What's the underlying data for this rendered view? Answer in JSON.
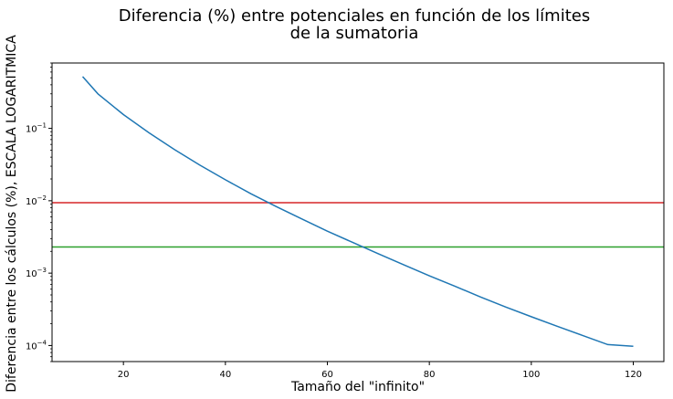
{
  "chart_data": {
    "type": "line",
    "title_lines": [
      "Diferencia (%) entre potenciales en función de los límites",
      "de la sumatoria"
    ],
    "xlabel": "Tamaño del \"infinito\"",
    "ylabel": "Diferencia entre los cálculos (%), ESCALA LOGARITMICA",
    "xlim": [
      6,
      126
    ],
    "ylim": [
      6e-05,
      0.8
    ],
    "yscale": "log",
    "grid": false,
    "x_ticks": [
      20,
      40,
      60,
      80,
      100,
      120
    ],
    "y_ticks": [
      {
        "value": 0.0001,
        "base": "10",
        "exp": "−4"
      },
      {
        "value": 0.001,
        "base": "10",
        "exp": "−3"
      },
      {
        "value": 0.01,
        "base": "10",
        "exp": "−2"
      },
      {
        "value": 0.1,
        "base": "10",
        "exp": "−1"
      }
    ],
    "series": [
      {
        "color": "#1f77b4",
        "x": [
          12,
          15,
          20,
          25,
          30,
          35,
          40,
          45,
          50,
          55,
          60,
          65,
          70,
          75,
          80,
          85,
          90,
          95,
          100,
          105,
          110,
          115,
          120
        ],
        "y": [
          0.52,
          0.3,
          0.155,
          0.087,
          0.051,
          0.031,
          0.0195,
          0.0125,
          0.0083,
          0.0056,
          0.0038,
          0.00265,
          0.00185,
          0.0013,
          0.00092,
          0.00066,
          0.00047,
          0.00034,
          0.00025,
          0.000185,
          0.000138,
          0.000103,
          9.75e-05
        ]
      }
    ],
    "hlines": [
      {
        "y": 0.0094,
        "color": "#d62728"
      },
      {
        "y": 0.0023,
        "color": "#2ca02c"
      }
    ]
  }
}
